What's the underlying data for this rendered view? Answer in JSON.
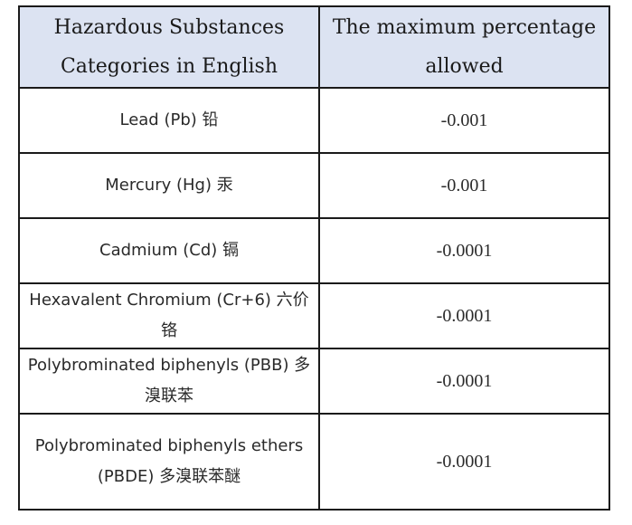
{
  "table": {
    "headers": [
      "Hazardous Substances Categories in English",
      "The maximum percentage allowed"
    ],
    "rows": [
      {
        "substance": "Lead (Pb) 铅",
        "max": "-0.001"
      },
      {
        "substance": "Mercury (Hg) 汞",
        "max": "-0.001"
      },
      {
        "substance": "Cadmium (Cd) 镉",
        "max": "-0.0001"
      },
      {
        "substance": "Hexavalent Chromium (Cr+6) 六价铬",
        "max": "-0.0001"
      },
      {
        "substance": "Polybrominated biphenyls (PBB) 多溴联苯",
        "max": "-0.0001"
      },
      {
        "substance": "Polybrominated biphenyls ethers (PBDE) 多溴联苯醚",
        "max": "-0.0001"
      }
    ],
    "header_bg": "#dce3f2"
  }
}
